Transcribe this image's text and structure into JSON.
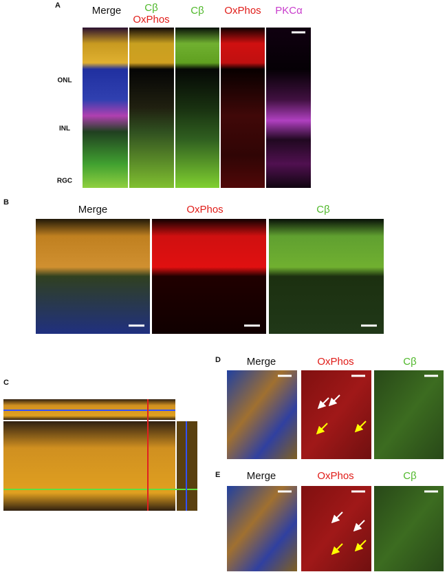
{
  "panel_a": {
    "letter": "A",
    "columns": [
      [
        "Merge"
      ],
      [
        "Cβ",
        "OxPhos"
      ],
      [
        "Cβ"
      ],
      [
        "OxPhos"
      ],
      [
        "PKCα"
      ]
    ],
    "layers": [
      "ONL",
      "INL",
      "RGC"
    ]
  },
  "panel_b": {
    "letter": "B",
    "columns": [
      "Merge",
      "OxPhos",
      "Cβ"
    ]
  },
  "panel_c": {
    "letter": "C"
  },
  "panel_d": {
    "letter": "D",
    "columns": [
      "Merge",
      "OxPhos",
      "Cβ"
    ]
  },
  "panel_e": {
    "letter": "E",
    "columns": [
      "Merge",
      "OxPhos",
      "Cβ"
    ]
  }
}
